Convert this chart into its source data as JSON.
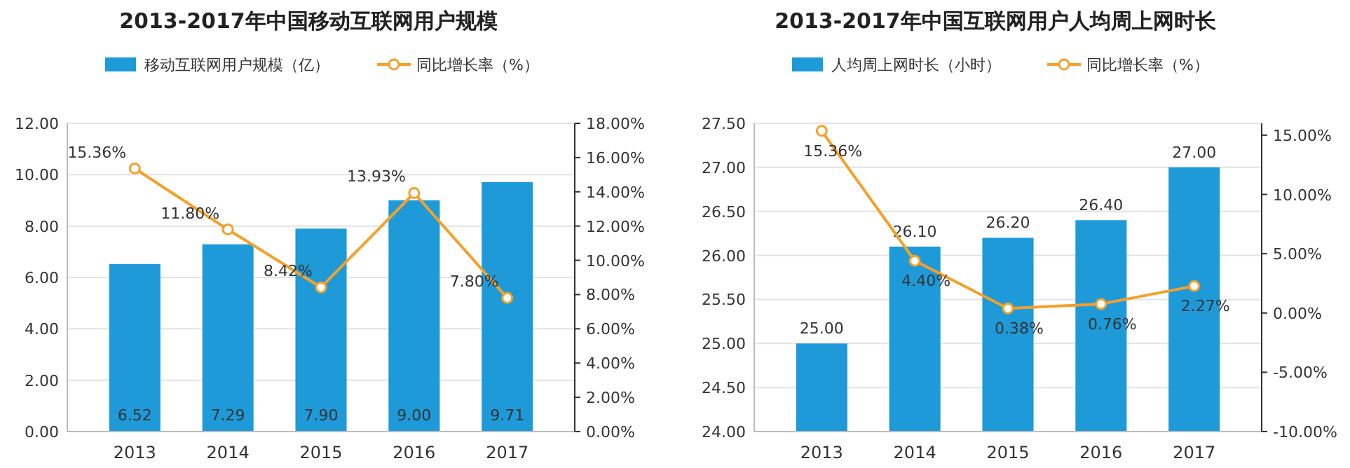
{
  "chart_data": [
    {
      "type": "bar",
      "title": "2013-2017年中国移动互联网用户规模",
      "categories": [
        "2013",
        "2014",
        "2015",
        "2016",
        "2017"
      ],
      "ylim": [
        0,
        12
      ],
      "yticks": [
        {
          "value": 0,
          "label": "0.00"
        },
        {
          "value": 2,
          "label": "2.00"
        },
        {
          "value": 4,
          "label": "4.00"
        },
        {
          "value": 6,
          "label": "6.00"
        },
        {
          "value": 8,
          "label": "8.00"
        },
        {
          "value": 10,
          "label": "10.00"
        },
        {
          "value": 12,
          "label": "12.00"
        }
      ],
      "y2lim": [
        0,
        18
      ],
      "y2ticks": [
        {
          "value": 0,
          "label": "0.00%"
        },
        {
          "value": 2,
          "label": "2.00%"
        },
        {
          "value": 4,
          "label": "4.00%"
        },
        {
          "value": 6,
          "label": "6.00%"
        },
        {
          "value": 8,
          "label": "8.00%"
        },
        {
          "value": 10,
          "label": "10.00%"
        },
        {
          "value": 12,
          "label": "12.00%"
        },
        {
          "value": 14,
          "label": "14.00%"
        },
        {
          "value": 16,
          "label": "16.00%"
        },
        {
          "value": 18,
          "label": "18.00%"
        }
      ],
      "grid": "y",
      "legend": "top",
      "marker": "circle",
      "series": [
        {
          "name": "移动互联网用户规模（亿）",
          "color": "#1e9ad9",
          "values": [
            6.52,
            7.29,
            7.9,
            9.0,
            9.71
          ],
          "value_labels": [
            "6.52",
            "7.29",
            "7.90",
            "9.00",
            "9.71"
          ]
        },
        {
          "name": "同比增长率（%）",
          "type": "line",
          "axis": "y2",
          "color": "#f5a02a",
          "values": [
            15.36,
            11.8,
            8.42,
            13.93,
            7.8
          ],
          "value_labels": [
            "15.36%",
            "11.80%",
            "8.42%",
            "13.93%",
            "7.80%"
          ]
        }
      ]
    },
    {
      "type": "bar",
      "title": "2013-2017年中国互联网用户人均周上网时长",
      "categories": [
        "2013",
        "2014",
        "2015",
        "2016",
        "2017"
      ],
      "ylim": [
        24,
        27.5
      ],
      "yticks": [
        {
          "value": 24,
          "label": "24.00"
        },
        {
          "value": 24.5,
          "label": "24.50"
        },
        {
          "value": 25,
          "label": "25.00"
        },
        {
          "value": 25.5,
          "label": "25.50"
        },
        {
          "value": 26,
          "label": "26.00"
        },
        {
          "value": 26.5,
          "label": "26.50"
        },
        {
          "value": 27,
          "label": "27.00"
        },
        {
          "value": 27.5,
          "label": "27.50"
        }
      ],
      "y2lim": [
        -10,
        16
      ],
      "y2ticks": [
        {
          "value": -10,
          "label": "-10.00%"
        },
        {
          "value": -5,
          "label": "-5.00%"
        },
        {
          "value": 0,
          "label": "0.00%"
        },
        {
          "value": 5,
          "label": "5.00%"
        },
        {
          "value": 10,
          "label": "10.00%"
        },
        {
          "value": 15,
          "label": "15.00%"
        }
      ],
      "grid": "y",
      "legend": "top",
      "marker": "circle",
      "series": [
        {
          "name": "人均周上网时长（小时）",
          "color": "#1e9ad9",
          "values": [
            25.0,
            26.1,
            26.2,
            26.4,
            27.0
          ],
          "value_labels": [
            "25.00",
            "26.10",
            "26.20",
            "26.40",
            "27.00"
          ]
        },
        {
          "name": "同比增长率（%）",
          "type": "line",
          "axis": "y2",
          "color": "#f5a02a",
          "values": [
            15.36,
            4.4,
            0.38,
            0.76,
            2.27
          ],
          "value_labels": [
            "15.36%",
            "4.40%",
            "0.38%",
            "0.76%",
            "2.27%"
          ]
        }
      ]
    }
  ]
}
